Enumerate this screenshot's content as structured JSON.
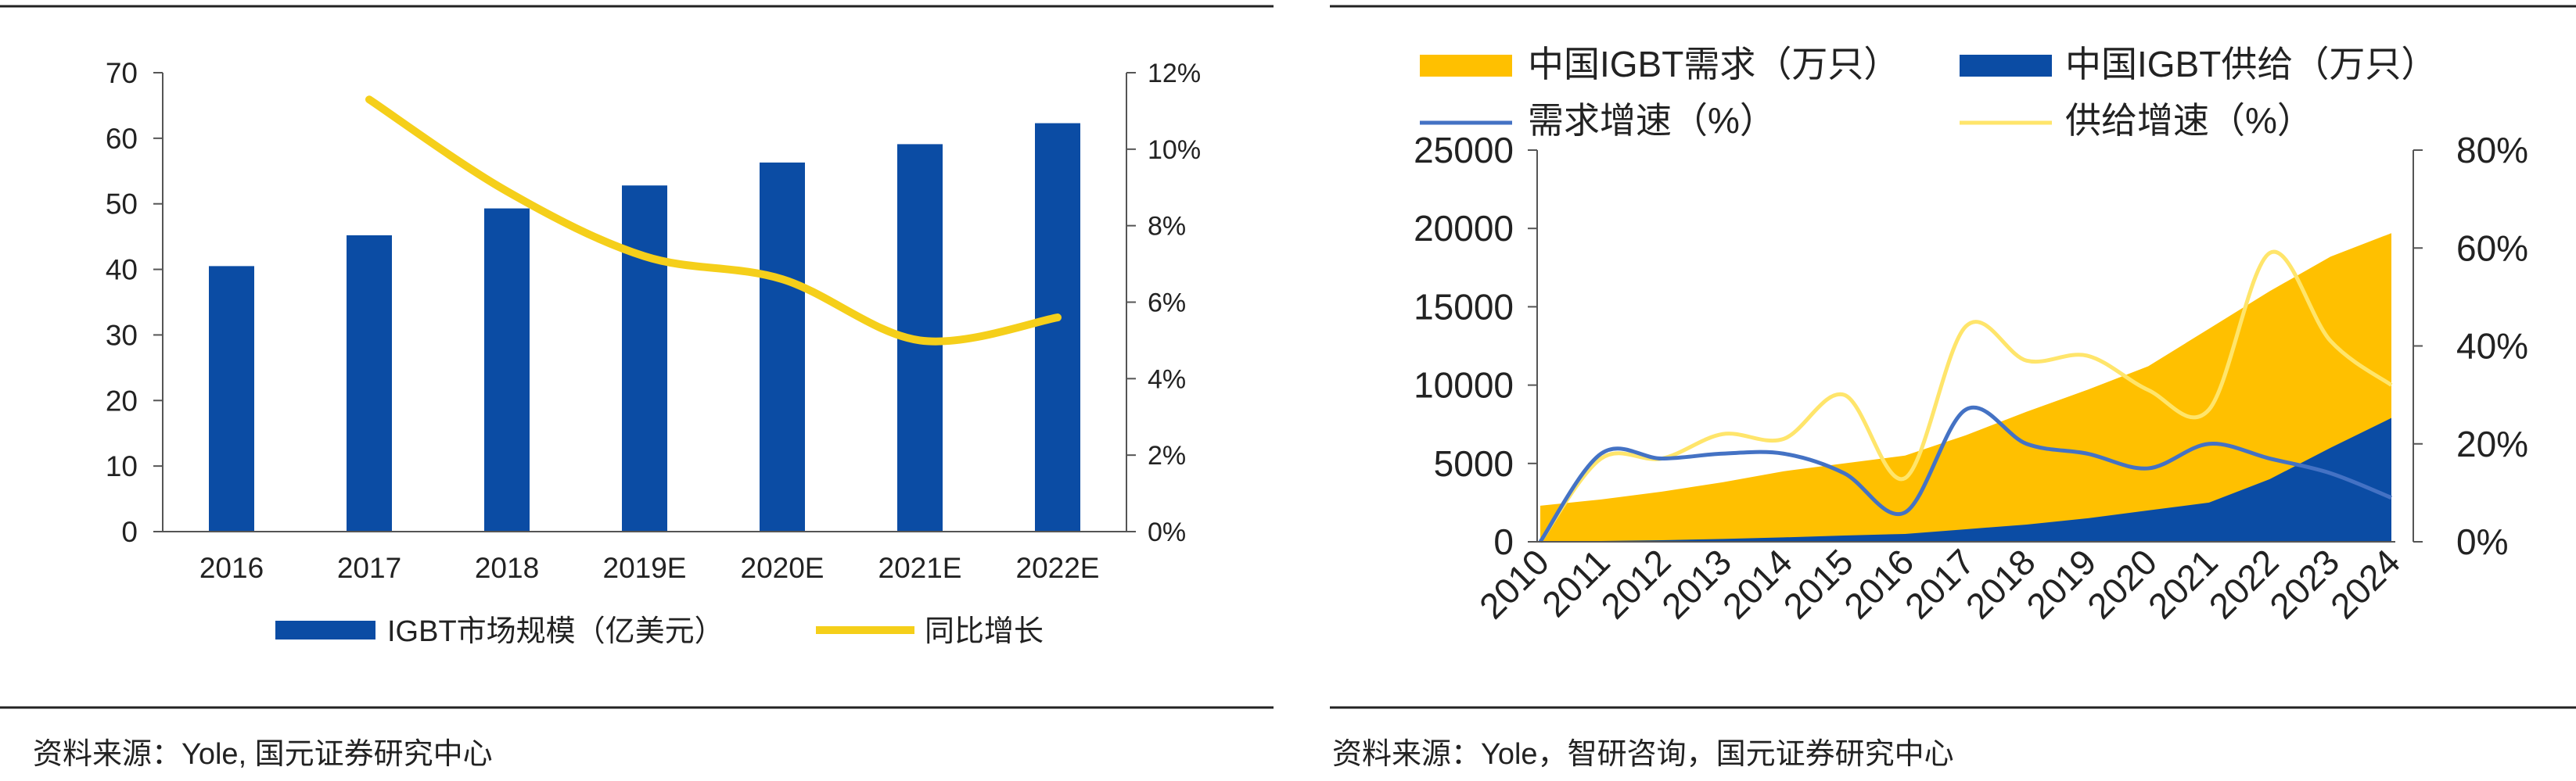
{
  "chart_data": [
    {
      "type": "bar",
      "categories": [
        "2016",
        "2017",
        "2018",
        "2019E",
        "2020E",
        "2021E",
        "2022E"
      ],
      "series": [
        {
          "name": "IGBT市场规模（亿美元）",
          "type": "bar",
          "axis": "left",
          "values": [
            40.5,
            45.2,
            49.3,
            52.8,
            56.3,
            59.1,
            62.3
          ],
          "color": "#0b4ca4"
        },
        {
          "name": "同比增长",
          "type": "line",
          "axis": "right",
          "values": [
            null,
            11.3,
            8.9,
            7.2,
            6.6,
            5.0,
            5.6
          ],
          "color": "#f5cf1a"
        }
      ],
      "y_left": {
        "min": 0,
        "max": 70,
        "ticks": [
          "0",
          "10",
          "20",
          "30",
          "40",
          "50",
          "60",
          "70"
        ]
      },
      "y_right": {
        "min": 0,
        "max": 12,
        "ticks": [
          "0%",
          "2%",
          "4%",
          "6%",
          "8%",
          "10%",
          "12%"
        ]
      },
      "legend_position": "bottom",
      "grid": false,
      "source": "资料来源：Yole, 国元证券研究中心"
    },
    {
      "type": "area",
      "categories": [
        "2010",
        "2011",
        "2012",
        "2013",
        "2014",
        "2015",
        "2016",
        "2017",
        "2018",
        "2019",
        "2020",
        "2021",
        "2022",
        "2023",
        "2024"
      ],
      "series": [
        {
          "name": "中国IGBT需求（万只）",
          "type": "area",
          "axis": "left",
          "color": "#ffc000",
          "values": [
            2300,
            2700,
            3200,
            3800,
            4500,
            5000,
            5500,
            6800,
            8300,
            9700,
            11200,
            13600,
            16000,
            18200,
            19700
          ]
        },
        {
          "name": "中国IGBT供给（万只）",
          "type": "area",
          "axis": "left",
          "color": "#0b4ca4",
          "values": [
            0,
            50,
            100,
            180,
            280,
            400,
            500,
            800,
            1100,
            1500,
            2000,
            2500,
            4000,
            6000,
            7900
          ]
        },
        {
          "name": "需求增速（%）",
          "type": "line",
          "axis": "right",
          "color": "#4472c4",
          "values": [
            0,
            18,
            17,
            18,
            18,
            14,
            6,
            27,
            20,
            18,
            15,
            20,
            17,
            14,
            9
          ]
        },
        {
          "name": "供给增速（%）",
          "type": "line",
          "axis": "right",
          "color": "#ffe56b",
          "values": [
            0,
            17,
            17,
            22,
            21,
            30,
            13,
            44,
            37,
            38,
            31,
            27,
            59,
            41,
            32
          ]
        }
      ],
      "y_left": {
        "min": 0,
        "max": 25000,
        "ticks": [
          "0",
          "5000",
          "10000",
          "15000",
          "20000",
          "25000"
        ]
      },
      "y_right": {
        "min": 0,
        "max": 80,
        "ticks": [
          "0%",
          "20%",
          "40%",
          "60%",
          "80%"
        ]
      },
      "legend_position": "top",
      "grid": false,
      "source": "资料来源：Yole，智研咨询，国元证券研究中心"
    }
  ]
}
